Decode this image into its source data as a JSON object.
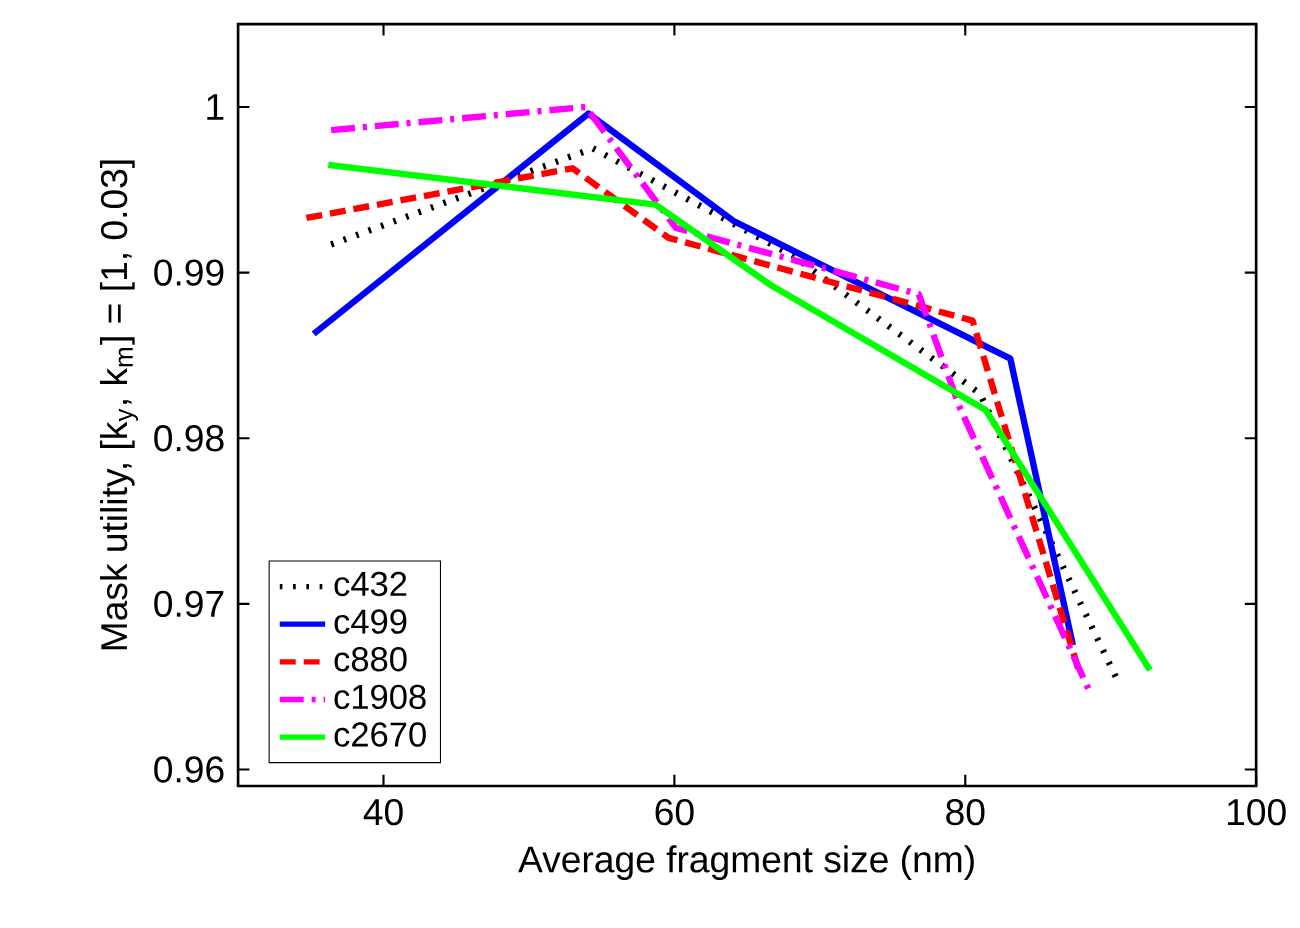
{
  "chart_data": {
    "type": "line",
    "xlabel": "Average fragment size (nm)",
    "ylabel": "Mask utility, [k$_{y}$, k$_{m}$] = [1, 0.03]",
    "xlim": [
      30,
      100
    ],
    "ylim": [
      0.959,
      1.005
    ],
    "xticks": [
      40,
      60,
      80,
      100
    ],
    "yticks": [
      0.96,
      0.97,
      0.98,
      0.99,
      1
    ],
    "legend": "bottom left",
    "grid": false,
    "marker": "none",
    "series": [
      {
        "name": "c432",
        "color": "#000000",
        "line_style": "dotted",
        "x": [
          36.4,
          54.4,
          68.2,
          81.0,
          90.4
        ],
        "values": [
          0.9917,
          0.9975,
          0.991,
          0.9827,
          0.9655
        ]
      },
      {
        "name": "c499",
        "color": "#0000ff",
        "line_style": "solid",
        "x": [
          35.2,
          54.1,
          64.1,
          83.1,
          87.4
        ],
        "values": [
          0.9863,
          0.9996,
          0.9931,
          0.9848,
          0.9675
        ]
      },
      {
        "name": "c880",
        "color": "#ff0000",
        "line_style": "dashed",
        "x": [
          34.7,
          53.0,
          59.6,
          80.5,
          87.9
        ],
        "values": [
          0.9933,
          0.9963,
          0.9921,
          0.9871,
          0.9657
        ]
      },
      {
        "name": "c1908",
        "color": "#ff00ff",
        "line_style": "dashdot",
        "x": [
          36.4,
          53.9,
          60.1,
          76.8,
          79.6,
          88.5
        ],
        "values": [
          0.9986,
          1.0,
          0.9927,
          0.9887,
          0.9819,
          0.9648
        ]
      },
      {
        "name": "c2670",
        "color": "#00ff00",
        "line_style": "solid",
        "x": [
          36.2,
          58.7,
          66.7,
          81.4,
          92.7
        ],
        "values": [
          0.9965,
          0.9941,
          0.9892,
          0.9817,
          0.966
        ]
      }
    ]
  }
}
